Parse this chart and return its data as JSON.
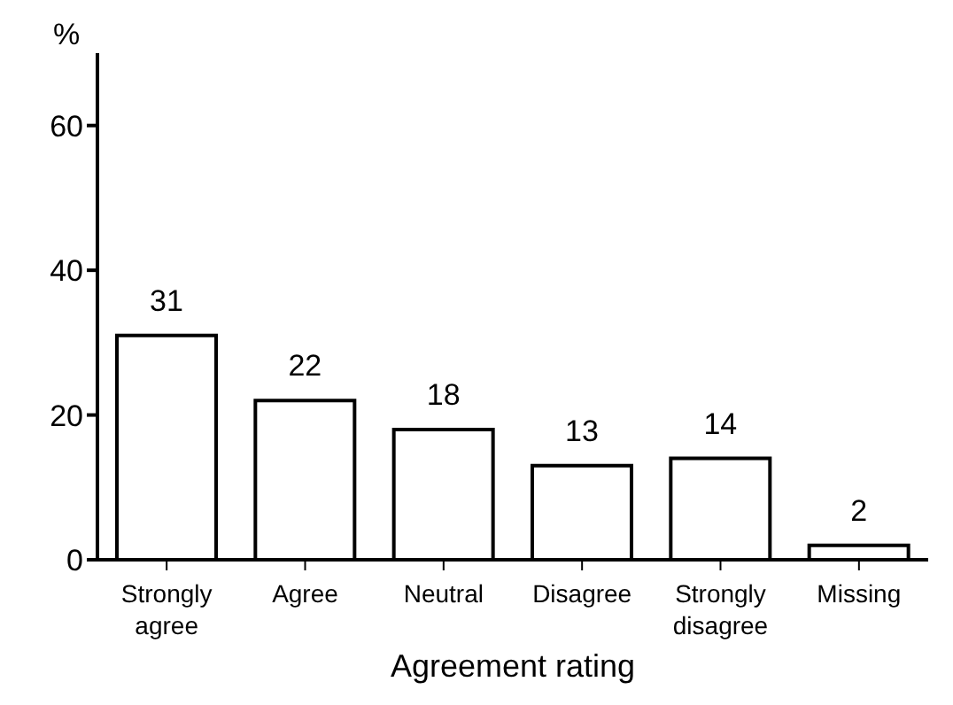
{
  "chart_data": {
    "type": "bar",
    "xlabel": "Agreement rating",
    "ylabel": "%",
    "categories": [
      "Strongly agree",
      "Agree",
      "Neutral",
      "Disagree",
      "Strongly disagree",
      "Missing"
    ],
    "values": [
      31,
      22,
      18,
      13,
      14,
      2
    ],
    "color": "#ffffff",
    "ylim": [
      0,
      70
    ],
    "yticks": [
      0,
      20,
      40,
      60
    ],
    "data_labels": true,
    "grid": false,
    "legend": false
  }
}
